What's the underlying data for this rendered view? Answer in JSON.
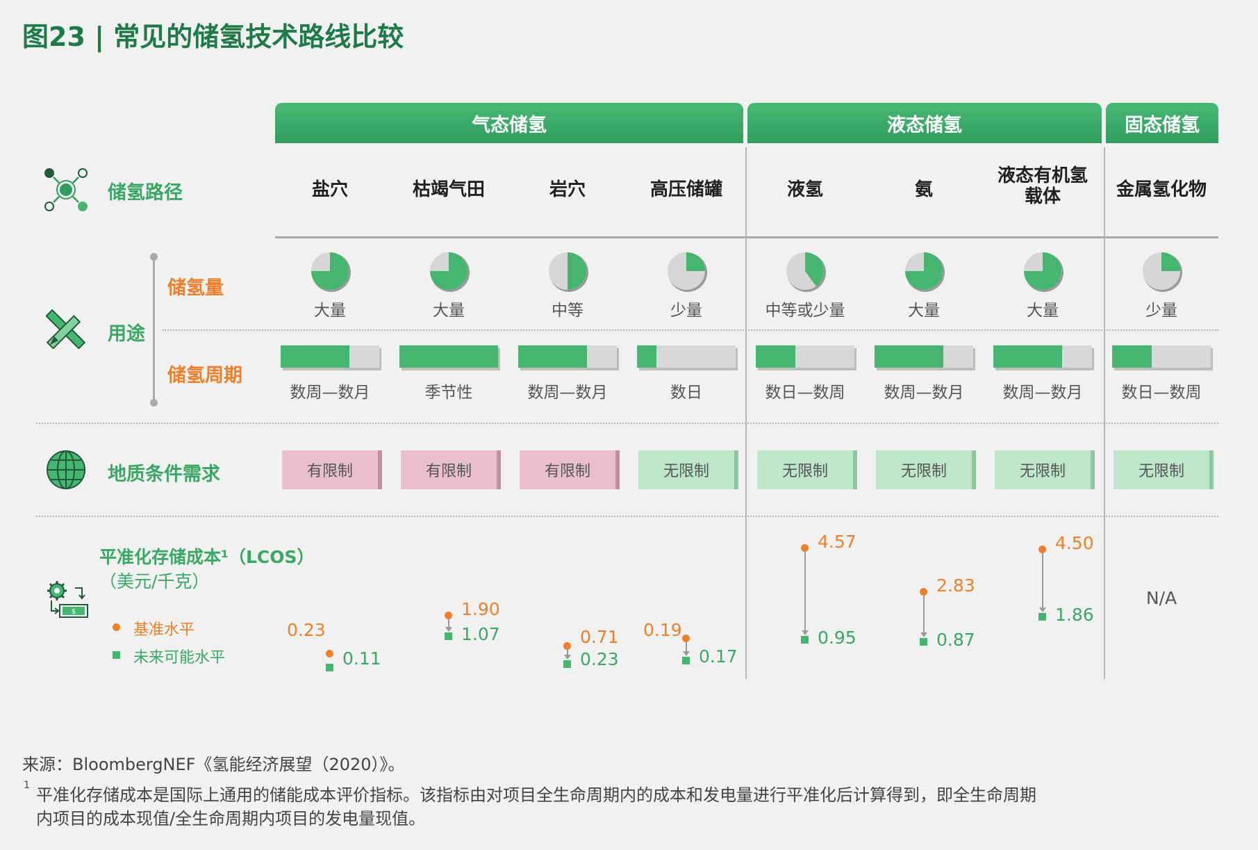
{
  "title": "图23 | 常见的储氢技术路线比较",
  "categories": [
    {
      "label": "气态储氢"
    },
    {
      "label": "液态储氢"
    },
    {
      "label": "固态储氢"
    }
  ],
  "row_labels": {
    "route": "储氢路径",
    "usage": "用途",
    "capacity": "储氢量",
    "period": "储氢周期",
    "geology": "地质条件需求",
    "lcos_title": "平准化存储成本¹（LCOS）",
    "lcos_unit": "（美元/千克）",
    "legend_base": "基准水平",
    "legend_future": "未来可能水平"
  },
  "routes": [
    {
      "name": "盐穴",
      "capacity": "大量",
      "capacity_fraction": 0.75,
      "period": "数周—数月",
      "period_fraction": 0.7,
      "geology": "有限制",
      "geology_limited": true,
      "lcos_base": "0.23",
      "lcos_future": "0.11"
    },
    {
      "name": "枯竭气田",
      "capacity": "大量",
      "capacity_fraction": 0.75,
      "period": "季节性",
      "period_fraction": 1.0,
      "geology": "有限制",
      "geology_limited": true,
      "lcos_base": "1.90",
      "lcos_future": "1.07"
    },
    {
      "name": "岩穴",
      "capacity": "中等",
      "capacity_fraction": 0.5,
      "period": "数周—数月",
      "period_fraction": 0.7,
      "geology": "有限制",
      "geology_limited": true,
      "lcos_base": "0.71",
      "lcos_future": "0.23"
    },
    {
      "name": "高压储罐",
      "capacity": "少量",
      "capacity_fraction": 0.25,
      "period": "数日",
      "period_fraction": 0.2,
      "geology": "无限制",
      "geology_limited": false,
      "lcos_base": "0.19",
      "lcos_future": "0.17"
    },
    {
      "name": "液氢",
      "capacity": "中等或少量",
      "capacity_fraction": 0.4,
      "period": "数日—数周",
      "period_fraction": 0.4,
      "geology": "无限制",
      "geology_limited": false,
      "lcos_base": "4.57",
      "lcos_future": "0.95"
    },
    {
      "name": "氨",
      "capacity": "大量",
      "capacity_fraction": 0.75,
      "period": "数周—数月",
      "period_fraction": 0.7,
      "geology": "无限制",
      "geology_limited": false,
      "lcos_base": "2.83",
      "lcos_future": "0.87"
    },
    {
      "name": "液态有机氢载体",
      "capacity": "大量",
      "capacity_fraction": 0.75,
      "period": "数周—数月",
      "period_fraction": 0.7,
      "geology": "无限制",
      "geology_limited": false,
      "lcos_base": "4.50",
      "lcos_future": "1.86"
    },
    {
      "name": "金属氢化物",
      "capacity": "少量",
      "capacity_fraction": 0.25,
      "period": "数日—数周",
      "period_fraction": 0.4,
      "geology": "无限制",
      "geology_limited": false,
      "lcos_na": "N/A"
    }
  ],
  "source": "来源：BloombergNEF《氢能经济展望（2020）》。",
  "footnote_mark": "1",
  "footnote_line1": "平准化存储成本是国际上通用的储能成本评价指标。该指标由对项目全生命周期内的成本和发电量进行平准化后计算得到，即全生命周期",
  "footnote_line2": "内项目的成本现值/全生命周期内项目的发电量现值。",
  "colors": {
    "green": "#45b670",
    "dark_green": "#1f7a4a",
    "orange": "#f07f2b",
    "limited": "#e8bfcb",
    "unlimited": "#bde7c8"
  },
  "icons": [
    "route-network-icon",
    "pencil-ruler-icon",
    "globe-icon",
    "gear-money-icon"
  ]
}
